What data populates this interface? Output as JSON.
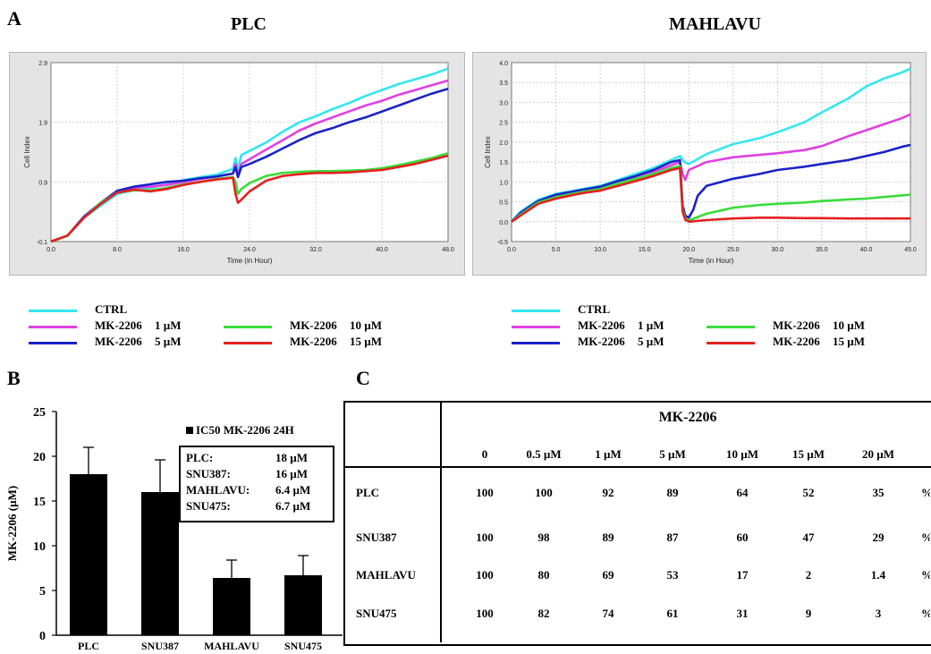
{
  "panel_labels": {
    "a": "A",
    "b": "B",
    "c": "C"
  },
  "chart_data": [
    {
      "type": "line",
      "title": "PLC",
      "xlabel": "Time (in Hour)",
      "ylabel": "Cell Index",
      "xlim": [
        0,
        48
      ],
      "ylim": [
        -0.1,
        2.9
      ],
      "xticks": [
        "0.0",
        "8.0",
        "16.0",
        "24.0",
        "32.0",
        "40.0",
        "48.0"
      ],
      "yticks": [
        "-0.1",
        "0.9",
        "1.9",
        "2.9"
      ],
      "grid": true,
      "series": [
        {
          "name": "CTRL",
          "color": "#33e6f0",
          "x": [
            0,
            2,
            4,
            6,
            8,
            10,
            12,
            14,
            16,
            18,
            20,
            22,
            22.3,
            22.6,
            23,
            24,
            26,
            28,
            30,
            32,
            34,
            36,
            38,
            40,
            42,
            44,
            46,
            48
          ],
          "y": [
            -0.1,
            0.0,
            0.3,
            0.5,
            0.7,
            0.76,
            0.8,
            0.86,
            0.93,
            0.98,
            1.02,
            1.12,
            1.3,
            1.1,
            1.35,
            1.42,
            1.56,
            1.74,
            1.9,
            2.0,
            2.12,
            2.22,
            2.34,
            2.44,
            2.54,
            2.62,
            2.7,
            2.8
          ]
        },
        {
          "name": "MK-2206 1 µM",
          "color": "#e040e0",
          "x": [
            0,
            2,
            4,
            6,
            8,
            10,
            12,
            14,
            16,
            18,
            20,
            22,
            22.3,
            22.6,
            23,
            24,
            26,
            28,
            30,
            32,
            34,
            36,
            38,
            40,
            42,
            44,
            46,
            48
          ],
          "y": [
            -0.1,
            0.0,
            0.3,
            0.55,
            0.74,
            0.8,
            0.82,
            0.85,
            0.9,
            0.95,
            0.99,
            1.04,
            1.2,
            1.0,
            1.2,
            1.28,
            1.44,
            1.6,
            1.76,
            1.88,
            1.98,
            2.08,
            2.18,
            2.26,
            2.36,
            2.44,
            2.52,
            2.6
          ]
        },
        {
          "name": "MK-2206 5 µM",
          "color": "#1a22c8",
          "x": [
            0,
            2,
            4,
            6,
            8,
            10,
            12,
            14,
            16,
            18,
            20,
            22,
            22.3,
            22.6,
            23,
            24,
            26,
            28,
            30,
            32,
            34,
            36,
            38,
            40,
            42,
            44,
            46,
            48
          ],
          "y": [
            -0.1,
            0.0,
            0.32,
            0.55,
            0.75,
            0.82,
            0.86,
            0.9,
            0.92,
            0.96,
            0.99,
            1.04,
            1.15,
            0.98,
            1.15,
            1.2,
            1.32,
            1.46,
            1.6,
            1.72,
            1.8,
            1.9,
            1.98,
            2.08,
            2.18,
            2.28,
            2.38,
            2.46
          ]
        },
        {
          "name": "MK-2206 10 µM",
          "color": "#3adc3a",
          "x": [
            0,
            2,
            4,
            6,
            8,
            10,
            12,
            14,
            16,
            18,
            20,
            22,
            22.3,
            22.6,
            23,
            24,
            26,
            28,
            30,
            32,
            34,
            36,
            38,
            40,
            42,
            44,
            46,
            48
          ],
          "y": [
            -0.1,
            0.0,
            0.3,
            0.55,
            0.72,
            0.76,
            0.76,
            0.8,
            0.86,
            0.9,
            0.95,
            0.98,
            0.9,
            0.7,
            0.78,
            0.88,
            1.0,
            1.05,
            1.07,
            1.08,
            1.08,
            1.09,
            1.1,
            1.13,
            1.18,
            1.24,
            1.3,
            1.38
          ]
        },
        {
          "name": "MK-2206 15 µM",
          "color": "#e42020",
          "x": [
            0,
            2,
            4,
            6,
            8,
            10,
            12,
            14,
            16,
            18,
            20,
            22,
            22.3,
            22.6,
            23,
            24,
            26,
            28,
            30,
            32,
            34,
            36,
            38,
            40,
            42,
            44,
            46,
            48
          ],
          "y": [
            -0.1,
            0.0,
            0.3,
            0.53,
            0.72,
            0.77,
            0.74,
            0.78,
            0.85,
            0.9,
            0.94,
            0.97,
            0.7,
            0.55,
            0.6,
            0.74,
            0.92,
            1.0,
            1.03,
            1.05,
            1.05,
            1.06,
            1.08,
            1.1,
            1.15,
            1.2,
            1.27,
            1.34
          ]
        }
      ]
    },
    {
      "type": "line",
      "title": "MAHLAVU",
      "xlabel": "Time (in Hour)",
      "ylabel": "Cell Index",
      "xlim": [
        0,
        45
      ],
      "ylim": [
        -0.5,
        4.0
      ],
      "xticks": [
        "0.0",
        "5.0",
        "10.0",
        "15.0",
        "20.0",
        "25.0",
        "30.0",
        "35.0",
        "40.0",
        "45.0"
      ],
      "yticks": [
        "-0.5",
        "0.0",
        "0.5",
        "1.0",
        "1.5",
        "2.0",
        "2.5",
        "3.0",
        "3.5",
        "4.0"
      ],
      "grid": true,
      "series": [
        {
          "name": "CTRL",
          "color": "#33e6f0",
          "x": [
            0,
            1,
            3,
            5,
            8,
            10,
            12,
            14,
            16,
            18,
            19,
            19.5,
            20,
            22,
            25,
            28,
            30,
            33,
            35,
            38,
            40,
            42,
            44,
            45
          ],
          "y": [
            0,
            0.25,
            0.55,
            0.7,
            0.82,
            0.9,
            1.05,
            1.2,
            1.35,
            1.55,
            1.65,
            1.5,
            1.45,
            1.7,
            1.95,
            2.1,
            2.25,
            2.5,
            2.75,
            3.1,
            3.4,
            3.6,
            3.75,
            3.85
          ]
        },
        {
          "name": "MK-2206 1 µM",
          "color": "#e040e0",
          "x": [
            0,
            1,
            3,
            5,
            8,
            10,
            12,
            14,
            16,
            18,
            19,
            19.3,
            19.6,
            20,
            22,
            25,
            28,
            30,
            33,
            35,
            38,
            40,
            42,
            44,
            45
          ],
          "y": [
            0,
            0.2,
            0.5,
            0.65,
            0.78,
            0.85,
            1.0,
            1.12,
            1.25,
            1.42,
            1.5,
            1.2,
            1.05,
            1.3,
            1.5,
            1.62,
            1.68,
            1.72,
            1.8,
            1.9,
            2.15,
            2.3,
            2.45,
            2.6,
            2.7
          ]
        },
        {
          "name": "MK-2206 5 µM",
          "color": "#1a22c8",
          "x": [
            0,
            1,
            3,
            5,
            8,
            10,
            12,
            14,
            16,
            18,
            19,
            19.3,
            19.6,
            20,
            20.5,
            21,
            22,
            25,
            28,
            30,
            33,
            35,
            38,
            40,
            42,
            44,
            45
          ],
          "y": [
            0,
            0.22,
            0.52,
            0.68,
            0.8,
            0.88,
            1.02,
            1.15,
            1.3,
            1.5,
            1.55,
            0.4,
            0.15,
            0.1,
            0.3,
            0.65,
            0.9,
            1.08,
            1.2,
            1.3,
            1.38,
            1.45,
            1.55,
            1.65,
            1.75,
            1.88,
            1.93
          ]
        },
        {
          "name": "MK-2206 10 µM",
          "color": "#3adc3a",
          "x": [
            0,
            1,
            3,
            5,
            8,
            10,
            12,
            14,
            16,
            18,
            19,
            19.3,
            19.6,
            20,
            22,
            25,
            28,
            30,
            33,
            35,
            38,
            40,
            42,
            44,
            45
          ],
          "y": [
            0,
            0.18,
            0.48,
            0.62,
            0.75,
            0.82,
            0.96,
            1.08,
            1.2,
            1.35,
            1.4,
            0.3,
            0.08,
            0.03,
            0.2,
            0.35,
            0.42,
            0.45,
            0.48,
            0.52,
            0.56,
            0.58,
            0.62,
            0.66,
            0.68
          ]
        },
        {
          "name": "MK-2206 15 µM",
          "color": "#e42020",
          "x": [
            0,
            1,
            3,
            5,
            8,
            10,
            12,
            14,
            16,
            18,
            19,
            19.3,
            19.6,
            20,
            22,
            25,
            28,
            30,
            33,
            35,
            38,
            40,
            42,
            44,
            45
          ],
          "y": [
            0,
            0.15,
            0.45,
            0.58,
            0.72,
            0.78,
            0.9,
            1.02,
            1.15,
            1.3,
            1.35,
            0.25,
            0.05,
            0.0,
            0.04,
            0.08,
            0.1,
            0.1,
            0.09,
            0.09,
            0.08,
            0.08,
            0.08,
            0.08,
            0.08
          ]
        }
      ]
    },
    {
      "type": "bar",
      "title": "",
      "xlabel": "",
      "ylabel": "MK-2206 (µM)",
      "categories": [
        "PLC",
        "SNU387",
        "MAHLAVU",
        "SNU475"
      ],
      "values": [
        18,
        16,
        6.4,
        6.7
      ],
      "errors": [
        3,
        3.6,
        2,
        2.2
      ],
      "ylim": [
        0,
        25
      ],
      "yticks": [
        "0",
        "5",
        "10",
        "15",
        "20",
        "25"
      ],
      "legend": "IC50 MK-2206 24H",
      "color": "#000000",
      "annotation": [
        {
          "label": "PLC:",
          "value": "18 µM"
        },
        {
          "label": "SNU387:",
          "value": "16 µM"
        },
        {
          "label": "MAHLAVU:",
          "value": "6.4 µM"
        },
        {
          "label": "SNU475:",
          "value": "6.7 µM"
        }
      ]
    },
    {
      "type": "table",
      "header": "MK-2206",
      "columns": [
        "0",
        "0.5 µM",
        "1 µM",
        "5 µM",
        "10 µM",
        "15 µM",
        "20 µM"
      ],
      "unit": "%",
      "rows": [
        {
          "label": "PLC",
          "values": [
            "100",
            "100",
            "92",
            "89",
            "64",
            "52",
            "35"
          ]
        },
        {
          "label": "SNU387",
          "values": [
            "100",
            "98",
            "89",
            "87",
            "60",
            "47",
            "29"
          ]
        },
        {
          "label": "MAHLAVU",
          "values": [
            "100",
            "80",
            "69",
            "53",
            "17",
            "2",
            "1.4"
          ]
        },
        {
          "label": "SNU475",
          "values": [
            "100",
            "82",
            "74",
            "61",
            "31",
            "9",
            "3"
          ]
        }
      ]
    }
  ],
  "legend": {
    "items": [
      {
        "name": "CTRL",
        "dose": "",
        "color": "#33e6f0"
      },
      {
        "name": "MK-2206",
        "dose": "1 µM",
        "color": "#e040e0"
      },
      {
        "name": "MK-2206",
        "dose": "5 µM",
        "color": "#1a22c8"
      },
      {
        "name": "MK-2206",
        "dose": "10 µM",
        "color": "#3adc3a"
      },
      {
        "name": "MK-2206",
        "dose": "15 µM",
        "color": "#e42020"
      }
    ]
  }
}
